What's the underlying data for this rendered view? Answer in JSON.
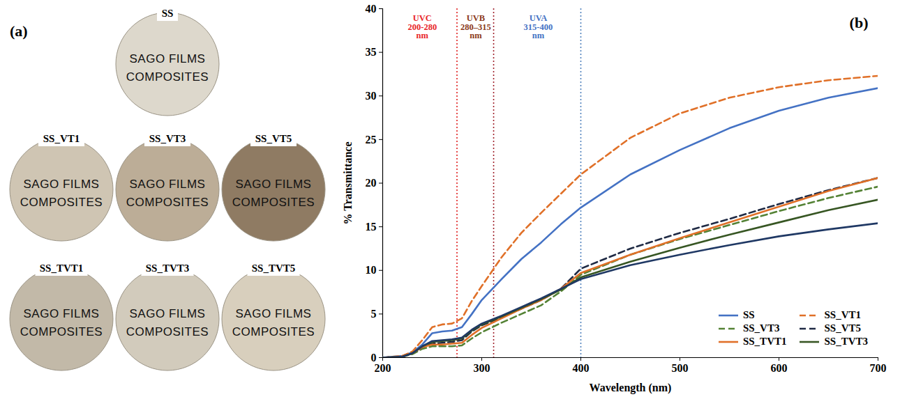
{
  "chart_data": {
    "type": "line",
    "letter": "(b)",
    "x_label": "Wavelength (nm)",
    "y_label": "% Transmittance",
    "xlim": [
      200,
      700
    ],
    "xticks": [
      200,
      300,
      400,
      500,
      600,
      700
    ],
    "ylim": [
      0,
      40
    ],
    "yticks": [
      0,
      5,
      10,
      15,
      20,
      25,
      30,
      35,
      40
    ],
    "grid": false,
    "legend": "lower right",
    "x": [
      200,
      220,
      230,
      240,
      250,
      260,
      270,
      280,
      290,
      300,
      320,
      340,
      360,
      380,
      400,
      450,
      500,
      550,
      600,
      650,
      700
    ],
    "series": [
      {
        "name": "SS",
        "color": "#4472c4",
        "line_style": "solid",
        "values": [
          0,
          0.2,
          0.6,
          1.5,
          2.8,
          3.0,
          3.1,
          3.5,
          5.0,
          6.6,
          9.0,
          11.3,
          13.2,
          15.3,
          17.2,
          21.0,
          23.8,
          26.3,
          28.3,
          29.8,
          30.9
        ]
      },
      {
        "name": "SS_VT1",
        "color": "#e07028",
        "line_style": "dashed",
        "values": [
          0,
          0.2,
          0.7,
          2.0,
          3.5,
          3.8,
          3.9,
          4.5,
          6.5,
          8.2,
          11.5,
          14.3,
          16.6,
          18.8,
          21.0,
          25.2,
          28.0,
          29.8,
          31.0,
          31.8,
          32.3
        ]
      },
      {
        "name": "SS_VT3",
        "color": "#548235",
        "line_style": "dashed",
        "values": [
          0,
          0.1,
          0.4,
          1.0,
          1.3,
          1.3,
          1.3,
          1.4,
          2.2,
          2.9,
          4.0,
          5.0,
          6.0,
          7.6,
          9.5,
          11.8,
          13.6,
          15.2,
          16.8,
          18.3,
          19.6
        ]
      },
      {
        "name": "SS_VT5",
        "color": "#1f2a44",
        "line_style": "dashed",
        "values": [
          0,
          0.1,
          0.5,
          1.2,
          1.6,
          1.7,
          1.8,
          2.0,
          3.0,
          3.7,
          4.6,
          5.6,
          6.6,
          7.9,
          10.2,
          12.5,
          14.3,
          15.9,
          17.6,
          19.2,
          20.6
        ]
      },
      {
        "name": "SS_TVT1",
        "color": "#e07028",
        "line_style": "solid",
        "values": [
          0,
          0.1,
          0.5,
          1.2,
          1.5,
          1.5,
          1.6,
          1.7,
          2.6,
          3.4,
          4.5,
          5.6,
          6.6,
          7.9,
          9.7,
          11.8,
          13.7,
          15.5,
          17.3,
          19.1,
          20.6
        ]
      },
      {
        "name": "SS_TVT3",
        "color": "#375623",
        "line_style": "solid",
        "values": [
          0,
          0.1,
          0.5,
          1.3,
          1.8,
          1.9,
          2.0,
          2.2,
          3.1,
          3.8,
          4.7,
          5.7,
          6.7,
          7.8,
          9.2,
          11.0,
          12.6,
          14.1,
          15.5,
          16.9,
          18.1
        ]
      },
      {
        "name": null,
        "color": "#1f3864",
        "line_style": "solid",
        "values": [
          0,
          0.1,
          0.5,
          1.3,
          1.9,
          2.0,
          2.1,
          2.3,
          3.2,
          3.9,
          4.8,
          5.8,
          6.8,
          7.9,
          9.0,
          10.6,
          11.8,
          12.9,
          13.9,
          14.7,
          15.4
        ]
      }
    ],
    "reference_lines": [
      {
        "x": 275,
        "color": "#e02020",
        "line_style": "dotted"
      },
      {
        "x": 312,
        "color": "#a0202a",
        "line_style": "dotted"
      },
      {
        "x": 400,
        "color": "#4f81bd",
        "line_style": "dotted"
      }
    ],
    "annotations": [
      {
        "text": "UVC\n200-280\nnm",
        "x": 240,
        "y": 39.3,
        "color": "#e8262a"
      },
      {
        "text": "UVB\n280–315\nnm",
        "x": 294,
        "y": 39.3,
        "color": "#8b3a1a"
      },
      {
        "text": "UVA\n315-400\nnm",
        "x": 357,
        "y": 39.3,
        "color": "#4472c4"
      }
    ]
  },
  "photos": {
    "letter": "(a)",
    "samples": [
      {
        "label": "SS",
        "text": [
          "SAGO FILMS",
          "COMPOSITES"
        ]
      },
      {
        "label": "SS_VT1",
        "text": [
          "SAGO FILMS",
          "COMPOSITES"
        ]
      },
      {
        "label": "SS_VT3",
        "text": [
          "SAGO FILMS",
          "COMPOSITES"
        ]
      },
      {
        "label": "SS_VT5",
        "text": [
          "SAGO FILMS",
          "COMPOSITES"
        ]
      },
      {
        "label": "SS_TVT1",
        "text": [
          "SAGO FILMS",
          "COMPOSITES"
        ]
      },
      {
        "label": "SS_TVT3",
        "text": [
          "SAGO FILMS",
          "COMPOSITES"
        ]
      },
      {
        "label": "SS_TVT5",
        "text": [
          "SAGO FILMS",
          "COMPOSITES"
        ]
      }
    ]
  }
}
